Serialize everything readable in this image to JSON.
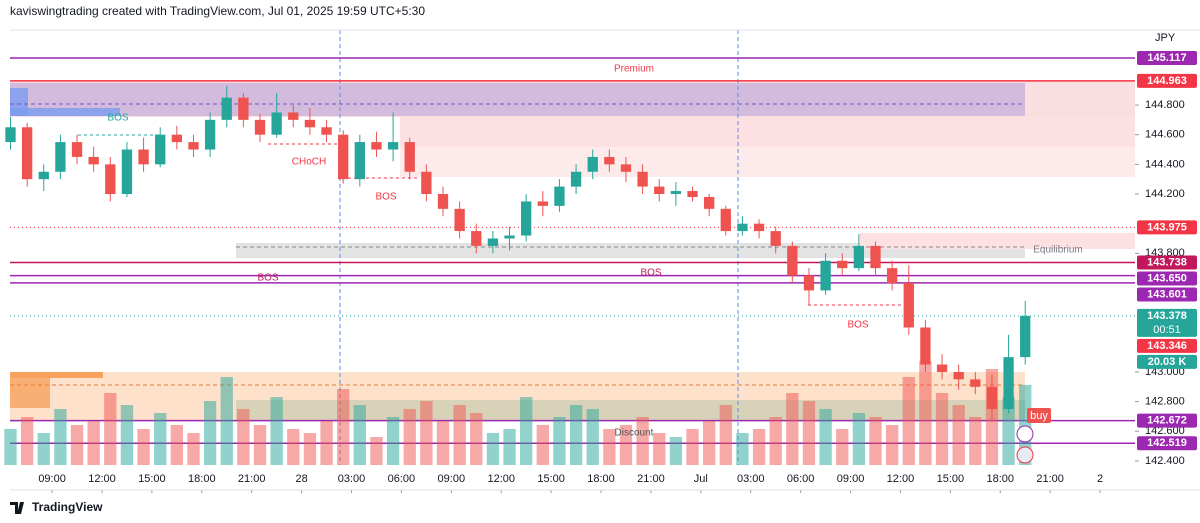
{
  "header": "kaviswingtrading created with TradingView.com, Jul 01, 2025 19:59 UTC+5:30",
  "footer": "TradingView",
  "chart_data": {
    "type": "candlestick",
    "currency": "JPY",
    "xlim": [
      -2.53,
      65.1
    ],
    "ylim": [
      142.204,
      145.306
    ],
    "xticks": [
      {
        "value": 0,
        "label": "09:00"
      },
      {
        "value": 3,
        "label": "12:00"
      },
      {
        "value": 6,
        "label": "15:00"
      },
      {
        "value": 9,
        "label": "18:00"
      },
      {
        "value": 12,
        "label": "21:00"
      },
      {
        "value": 15,
        "label": "28"
      },
      {
        "value": 18,
        "label": "03:00"
      },
      {
        "value": 21,
        "label": "06:00"
      },
      {
        "value": 24,
        "label": "09:00"
      },
      {
        "value": 27,
        "label": "12:00"
      },
      {
        "value": 30,
        "label": "15:00"
      },
      {
        "value": 33,
        "label": "18:00"
      },
      {
        "value": 36,
        "label": "21:00"
      },
      {
        "value": 39,
        "label": "Jul"
      },
      {
        "value": 42,
        "label": "03:00"
      },
      {
        "value": 45,
        "label": "06:00"
      },
      {
        "value": 48,
        "label": "09:00"
      },
      {
        "value": 51,
        "label": "12:00"
      },
      {
        "value": 54,
        "label": "15:00"
      },
      {
        "value": 57,
        "label": "18:00"
      },
      {
        "value": 60,
        "label": "21:00"
      },
      {
        "value": 63,
        "label": "2"
      }
    ],
    "yticks": [
      {
        "value": 144.8,
        "label": "144.800"
      },
      {
        "value": 144.6,
        "label": "144.600"
      },
      {
        "value": 144.4,
        "label": "144.400"
      },
      {
        "value": 144.2,
        "label": "144.200"
      },
      {
        "value": 143.8,
        "label": "143.800"
      },
      {
        "value": 143,
        "label": "143.000"
      },
      {
        "value": 142.8,
        "label": "142.800"
      },
      {
        "value": 142.6,
        "label": "142.600"
      },
      {
        "value": 142.4,
        "label": "142.400"
      }
    ],
    "up_color": "#26a69a",
    "down_color": "#ef5350",
    "x": [
      -2.5,
      -1.5,
      -0.5,
      0.5,
      1.5,
      2.5,
      3.5,
      4.5,
      5.5,
      6.5,
      7.5,
      8.5,
      9.5,
      10.5,
      11.5,
      12.5,
      13.5,
      14.5,
      15.5,
      16.5,
      17.5,
      18.5,
      19.5,
      20.5,
      21.5,
      22.5,
      23.5,
      24.5,
      25.5,
      26.5,
      27.5,
      28.5,
      29.5,
      30.5,
      31.5,
      32.5,
      33.5,
      34.5,
      35.5,
      36.5,
      37.5,
      38.5,
      39.5,
      40.5,
      41.5,
      42.5,
      43.5,
      44.5,
      45.5,
      46.5,
      47.5,
      48.5,
      49.5,
      50.5,
      51.5,
      52.5,
      53.5,
      54.5,
      55.5,
      56.5,
      57.5,
      58.5
    ],
    "candles": [
      [
        144.55,
        144.72,
        144.5,
        144.65
      ],
      [
        144.65,
        144.68,
        144.25,
        144.3
      ],
      [
        144.3,
        144.4,
        144.22,
        144.35
      ],
      [
        144.35,
        144.6,
        144.3,
        144.55
      ],
      [
        144.55,
        144.6,
        144.4,
        144.45
      ],
      [
        144.45,
        144.52,
        144.35,
        144.4
      ],
      [
        144.4,
        144.45,
        144.15,
        144.2
      ],
      [
        144.2,
        144.55,
        144.18,
        144.5
      ],
      [
        144.5,
        144.58,
        144.35,
        144.4
      ],
      [
        144.4,
        144.65,
        144.38,
        144.6
      ],
      [
        144.6,
        144.66,
        144.5,
        144.55
      ],
      [
        144.55,
        144.6,
        144.45,
        144.5
      ],
      [
        144.5,
        144.75,
        144.45,
        144.7
      ],
      [
        144.7,
        144.93,
        144.65,
        144.85
      ],
      [
        144.85,
        144.88,
        144.65,
        144.7
      ],
      [
        144.7,
        144.74,
        144.55,
        144.6
      ],
      [
        144.6,
        144.88,
        144.58,
        144.75
      ],
      [
        144.75,
        144.8,
        144.65,
        144.7
      ],
      [
        144.7,
        144.78,
        144.6,
        144.65
      ],
      [
        144.65,
        144.7,
        144.55,
        144.6
      ],
      [
        144.6,
        144.63,
        144.27,
        144.3
      ],
      [
        144.3,
        144.6,
        144.25,
        144.55
      ],
      [
        144.55,
        144.62,
        144.45,
        144.5
      ],
      [
        144.5,
        144.75,
        144.42,
        144.55
      ],
      [
        144.55,
        144.58,
        144.3,
        144.35
      ],
      [
        144.35,
        144.4,
        144.15,
        144.2
      ],
      [
        144.2,
        144.25,
        144.05,
        144.1
      ],
      [
        144.1,
        144.15,
        143.9,
        143.95
      ],
      [
        143.95,
        144.0,
        143.8,
        143.85
      ],
      [
        143.85,
        143.95,
        143.8,
        143.9
      ],
      [
        143.9,
        143.98,
        143.82,
        143.92
      ],
      [
        143.92,
        144.2,
        143.88,
        144.15
      ],
      [
        144.15,
        144.22,
        144.05,
        144.12
      ],
      [
        144.12,
        144.3,
        144.08,
        144.25
      ],
      [
        144.25,
        144.4,
        144.2,
        144.35
      ],
      [
        144.35,
        144.5,
        144.3,
        144.45
      ],
      [
        144.45,
        144.5,
        144.35,
        144.4
      ],
      [
        144.4,
        144.45,
        144.28,
        144.35
      ],
      [
        144.35,
        144.4,
        144.2,
        144.25
      ],
      [
        144.25,
        144.3,
        144.15,
        144.2
      ],
      [
        144.2,
        144.28,
        144.12,
        144.22
      ],
      [
        144.22,
        144.25,
        144.15,
        144.18
      ],
      [
        144.18,
        144.2,
        144.05,
        144.1
      ],
      [
        144.1,
        144.12,
        143.92,
        143.95
      ],
      [
        143.95,
        144.05,
        143.92,
        144.0
      ],
      [
        144.0,
        144.03,
        143.9,
        143.95
      ],
      [
        143.95,
        143.98,
        143.8,
        143.85
      ],
      [
        143.85,
        143.88,
        143.6,
        143.65
      ],
      [
        143.65,
        143.7,
        143.45,
        143.55
      ],
      [
        143.55,
        143.8,
        143.52,
        143.75
      ],
      [
        143.75,
        143.8,
        143.65,
        143.7
      ],
      [
        143.7,
        143.93,
        143.68,
        143.85
      ],
      [
        143.85,
        143.88,
        143.65,
        143.7
      ],
      [
        143.7,
        143.75,
        143.55,
        143.6
      ],
      [
        143.6,
        143.72,
        143.25,
        143.3
      ],
      [
        143.3,
        143.35,
        143.0,
        143.05
      ],
      [
        143.05,
        143.12,
        142.95,
        143.0
      ],
      [
        143.0,
        143.05,
        142.88,
        142.95
      ],
      [
        142.95,
        143.0,
        142.85,
        142.9
      ],
      [
        142.9,
        142.98,
        142.68,
        142.75
      ],
      [
        142.75,
        143.25,
        142.72,
        143.1
      ],
      [
        143.1,
        143.48,
        143.05,
        143.378
      ]
    ],
    "volume": [
      9,
      12,
      8,
      14,
      10,
      11,
      18,
      15,
      9,
      13,
      10,
      8,
      16,
      22,
      14,
      10,
      17,
      9,
      8,
      11,
      19,
      15,
      7,
      12,
      14,
      16,
      11,
      15,
      13,
      8,
      9,
      17,
      10,
      12,
      15,
      14,
      9,
      10,
      12,
      8,
      7,
      9,
      11,
      15,
      8,
      9,
      12,
      18,
      16,
      14,
      9,
      13,
      12,
      10,
      22,
      26,
      18,
      15,
      12,
      24,
      17,
      20.03
    ],
    "volume_label": "20.03 K",
    "countdown": "00:51",
    "levels": [
      {
        "value": 145.117,
        "label": "145.117",
        "color": "#9c27b0",
        "line": "solid"
      },
      {
        "value": 144.963,
        "label": "144.963",
        "color": "#f23645",
        "line": "solid"
      },
      {
        "value": 143.975,
        "label": "143.975",
        "color": "#f23645",
        "line": "dotted"
      },
      {
        "value": 143.738,
        "label": "143.738",
        "color": "#c2185b",
        "line": "solid"
      },
      {
        "value": 143.65,
        "label": "143.650",
        "color": "#9c27b0",
        "line": "solid"
      },
      {
        "value": 143.601,
        "label": "143.601",
        "color": "#9c27b0",
        "line": "solid"
      },
      {
        "value": 143.378,
        "label": "143.378",
        "color": "#26a69a",
        "line": "dotted"
      },
      {
        "value": 143.346,
        "label": "143.346",
        "color": "#f23645",
        "line": "none"
      },
      {
        "value": 142.672,
        "label": "142.672",
        "color": "#9c27b0",
        "line": "solid"
      },
      {
        "value": 142.519,
        "label": "142.519",
        "color": "#9c27b0",
        "line": "solid"
      }
    ],
    "annotations": [
      "Premium",
      "Equilibrium",
      "Discount",
      "BOS",
      "CHoCH",
      "BOS",
      "BOS",
      "BOS",
      "BOS",
      "buy"
    ]
  }
}
